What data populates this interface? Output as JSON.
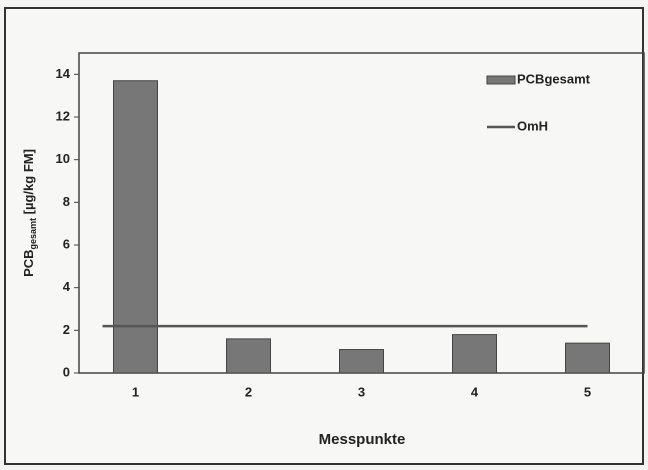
{
  "chart_data": {
    "type": "bar",
    "y_label": [
      "PCB",
      "gesamt",
      " [µg/kg FM]"
    ],
    "x_label": "Messpunkte",
    "categories": [
      "1",
      "2",
      "3",
      "4",
      "5"
    ],
    "series": [
      {
        "name": "PCBgesamt",
        "type": "bar",
        "color": "#777777",
        "values": [
          13.7,
          1.6,
          1.1,
          1.8,
          1.4
        ]
      },
      {
        "name": "OmH",
        "type": "line",
        "color": "#555555",
        "values": [
          2.2,
          2.2,
          2.2,
          2.2,
          2.2
        ]
      }
    ],
    "ylim": [
      0,
      15
    ],
    "yticks": [
      0,
      2,
      4,
      6,
      8,
      10,
      12,
      14
    ],
    "legend": "upper right"
  }
}
